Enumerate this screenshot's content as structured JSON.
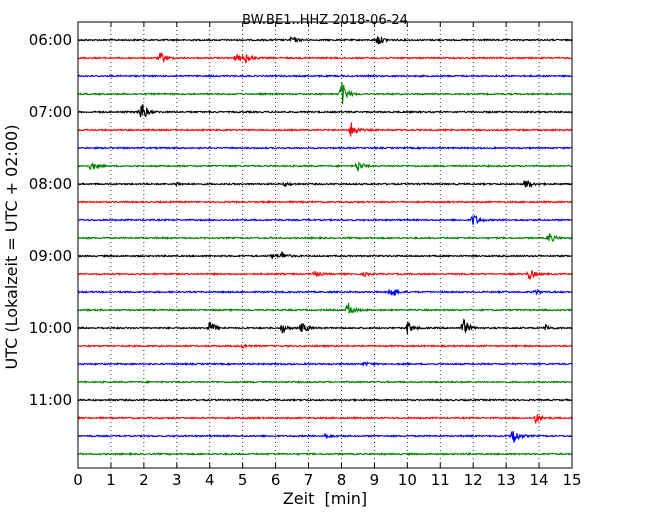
{
  "chart_data": {
    "type": "line",
    "title": "BW.BE1..HHZ 2018-06-24",
    "xlabel": "Zeit  [min]",
    "ylabel": "UTC (Lokalzeit = UTC + 02:00)",
    "xlim": [
      0,
      15
    ],
    "x_ticks": [
      "0",
      "1",
      "2",
      "3",
      "4",
      "5",
      "6",
      "7",
      "8",
      "9",
      "10",
      "11",
      "12",
      "13",
      "14",
      "15"
    ],
    "y_tick_labels": [
      "06:00",
      "07:00",
      "08:00",
      "09:00",
      "10:00",
      "11:00"
    ],
    "grid": "vertical dotted",
    "trace_colors": [
      "#000000",
      "#ff0000",
      "#0000ff",
      "#008000"
    ],
    "traces": [
      {
        "start": "06:00",
        "color": "#000000",
        "events": [
          [
            6.5,
            4
          ],
          [
            9.1,
            6
          ]
        ]
      },
      {
        "start": "06:15",
        "color": "#ff0000",
        "events": [
          [
            2.5,
            6
          ],
          [
            4.8,
            4
          ],
          [
            5.1,
            5
          ]
        ]
      },
      {
        "start": "06:30",
        "color": "#0000ff",
        "events": []
      },
      {
        "start": "06:45",
        "color": "#008000",
        "events": [
          [
            8.0,
            14
          ]
        ]
      },
      {
        "start": "07:00",
        "color": "#000000",
        "events": [
          [
            1.9,
            13
          ]
        ]
      },
      {
        "start": "07:15",
        "color": "#ff0000",
        "events": [
          [
            8.3,
            9
          ]
        ]
      },
      {
        "start": "07:30",
        "color": "#0000ff",
        "events": []
      },
      {
        "start": "07:45",
        "color": "#008000",
        "events": [
          [
            0.4,
            5
          ],
          [
            8.5,
            6
          ]
        ]
      },
      {
        "start": "08:00",
        "color": "#000000",
        "events": [
          [
            3.0,
            2
          ],
          [
            6.3,
            2
          ],
          [
            13.6,
            6
          ]
        ]
      },
      {
        "start": "08:15",
        "color": "#ff0000",
        "events": []
      },
      {
        "start": "08:30",
        "color": "#0000ff",
        "events": [
          [
            12.0,
            7
          ]
        ]
      },
      {
        "start": "08:45",
        "color": "#008000",
        "events": [
          [
            14.3,
            6
          ]
        ]
      },
      {
        "start": "09:00",
        "color": "#000000",
        "events": [
          [
            6.2,
            4
          ],
          [
            5.9,
            2
          ]
        ]
      },
      {
        "start": "09:15",
        "color": "#ff0000",
        "events": [
          [
            7.2,
            3
          ],
          [
            8.7,
            2
          ],
          [
            13.7,
            6
          ]
        ]
      },
      {
        "start": "09:30",
        "color": "#0000ff",
        "events": [
          [
            9.5,
            8
          ],
          [
            13.9,
            2
          ]
        ]
      },
      {
        "start": "09:45",
        "color": "#008000",
        "events": [
          [
            8.2,
            8
          ]
        ]
      },
      {
        "start": "10:00",
        "color": "#000000",
        "events": [
          [
            4.0,
            8
          ],
          [
            6.2,
            5
          ],
          [
            6.8,
            6
          ],
          [
            10.0,
            7
          ],
          [
            11.7,
            10
          ],
          [
            14.2,
            3
          ]
        ]
      },
      {
        "start": "10:15",
        "color": "#ff0000",
        "events": [
          [
            5.0,
            2
          ]
        ]
      },
      {
        "start": "10:30",
        "color": "#0000ff",
        "events": [
          [
            8.7,
            2
          ]
        ]
      },
      {
        "start": "10:45",
        "color": "#008000",
        "events": []
      },
      {
        "start": "11:00",
        "color": "#000000",
        "events": []
      },
      {
        "start": "11:15",
        "color": "#ff0000",
        "events": [
          [
            13.9,
            5
          ]
        ]
      },
      {
        "start": "11:30",
        "color": "#0000ff",
        "events": [
          [
            7.5,
            3
          ],
          [
            13.2,
            10
          ]
        ]
      },
      {
        "start": "11:45",
        "color": "#008000",
        "events": []
      }
    ]
  }
}
